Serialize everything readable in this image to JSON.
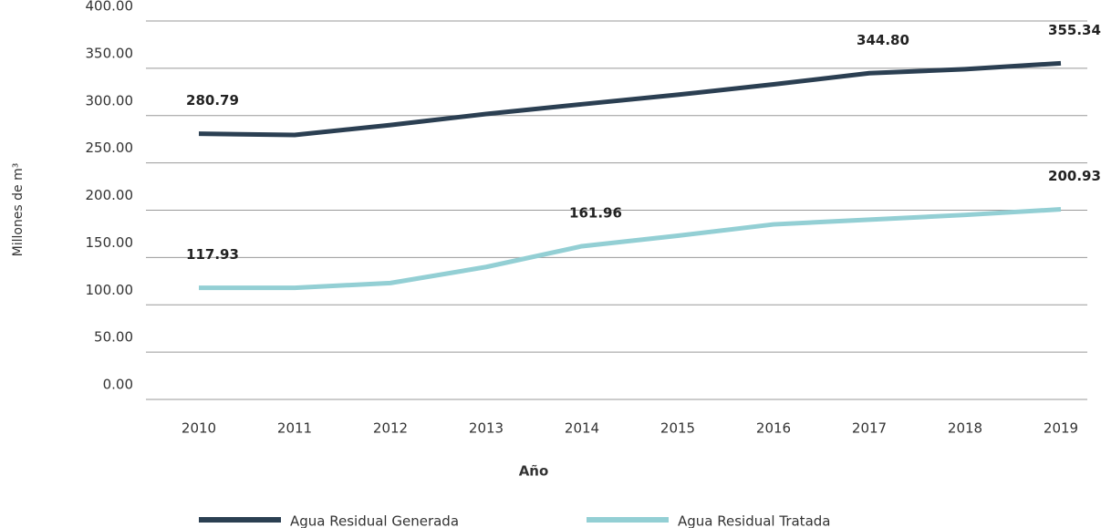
{
  "chart_data": {
    "type": "line",
    "x_label": "Año",
    "y_label": "Millones de m³",
    "categories": [
      "2010",
      "2011",
      "2012",
      "2013",
      "2014",
      "2015",
      "2016",
      "2017",
      "2018",
      "2019"
    ],
    "series": [
      {
        "name": "Agua Residual Generada",
        "color": "#2b3f52",
        "values": [
          280.79,
          279.5,
          290,
          301.7,
          312,
          322,
          333,
          344.8,
          349,
          355.34
        ],
        "value_labels": [
          "280.79",
          null,
          null,
          null,
          null,
          null,
          null,
          "344.80",
          null,
          "355.34"
        ]
      },
      {
        "name": "Agua Residual Tratada",
        "color": "#93cfd4",
        "values": [
          117.93,
          118,
          123,
          140,
          161.96,
          173,
          185,
          190,
          195,
          200.93
        ],
        "value_labels": [
          "117.93",
          null,
          null,
          null,
          "161.96",
          null,
          null,
          null,
          null,
          "200.93"
        ]
      }
    ],
    "ylim": [
      0,
      400
    ],
    "yticks": [
      {
        "value": 0,
        "label": "0.00"
      },
      {
        "value": 50,
        "label": "50.00"
      },
      {
        "value": 100,
        "label": "100.00"
      },
      {
        "value": 150,
        "label": "150.00"
      },
      {
        "value": 200,
        "label": "200.00"
      },
      {
        "value": 250,
        "label": "250.00"
      },
      {
        "value": 300,
        "label": "300.00"
      },
      {
        "value": 350,
        "label": "350.00"
      },
      {
        "value": 400,
        "label": "400.00"
      }
    ],
    "grid": true,
    "legend": "bottom"
  }
}
